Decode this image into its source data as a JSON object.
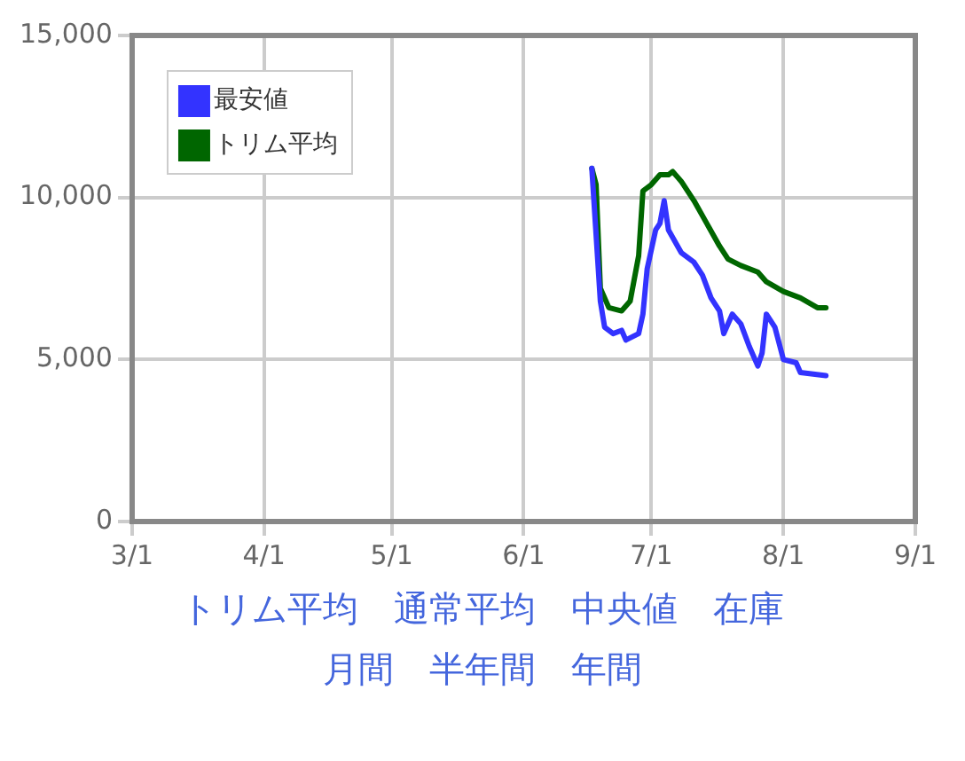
{
  "chart_data": {
    "type": "line",
    "x": [
      "--06-17",
      "--06-19",
      "--06-20",
      "--06-22",
      "--06-24",
      "--06-25",
      "--06-28",
      "--06-29",
      "--06-30",
      "--07-02",
      "--07-03",
      "--07-04",
      "--07-05",
      "--07-08",
      "--07-11",
      "--07-13",
      "--07-15",
      "--07-17",
      "--07-18",
      "--07-20",
      "--07-22",
      "--07-24",
      "--07-26",
      "--07-27",
      "--07-28",
      "--07-30",
      "--08-01",
      "--08-04",
      "--08-05",
      "--08-11"
    ],
    "series": [
      {
        "name": "最安値",
        "color": "#3333ff",
        "values": [
          10900,
          6800,
          6000,
          5800,
          5900,
          5600,
          5800,
          6400,
          7800,
          9000,
          9200,
          9900,
          9000,
          8300,
          8000,
          7600,
          6900,
          6500,
          5800,
          6400,
          6100,
          5400,
          4800,
          5200,
          6400,
          6000,
          5000,
          4900,
          4600,
          4500
        ]
      },
      {
        "name": "トリム平均",
        "color": "#006600",
        "x": [
          "--06-17",
          "--06-18",
          "--06-19",
          "--06-21",
          "--06-24",
          "--06-26",
          "--06-28",
          "--06-29",
          "--07-01",
          "--07-03",
          "--07-05",
          "--07-06",
          "--07-08",
          "--07-11",
          "--07-14",
          "--07-17",
          "--07-19",
          "--07-22",
          "--07-26",
          "--07-28",
          "--08-01",
          "--08-05",
          "--08-09",
          "--08-11"
        ],
        "values": [
          10900,
          10400,
          7200,
          6600,
          6500,
          6800,
          8200,
          10200,
          10400,
          10700,
          10700,
          10800,
          10500,
          9900,
          9200,
          8500,
          8100,
          7900,
          7700,
          7400,
          7100,
          6900,
          6600,
          6600
        ]
      }
    ],
    "xlim": [
      "--03-01",
      "--09-01"
    ],
    "xticks": [
      {
        "value": "--03-01",
        "label": "3/1"
      },
      {
        "value": "--04-01",
        "label": "4/1"
      },
      {
        "value": "--05-01",
        "label": "5/1"
      },
      {
        "value": "--06-01",
        "label": "6/1"
      },
      {
        "value": "--07-01",
        "label": "7/1"
      },
      {
        "value": "--08-01",
        "label": "8/1"
      },
      {
        "value": "--09-01",
        "label": "9/1"
      }
    ],
    "ylim": [
      0,
      15000
    ],
    "yticks": [
      {
        "value": 0,
        "label": "0"
      },
      {
        "value": 5000,
        "label": "5,000"
      },
      {
        "value": 10000,
        "label": "10,000"
      },
      {
        "value": 15000,
        "label": "15,000"
      }
    ],
    "grid": true,
    "legend": "top left",
    "marker": "none",
    "line_style": "solid",
    "annotations": [
      "トリム平均",
      "通常平均",
      "中央値",
      "在庫",
      "月間",
      "半年間",
      "年間"
    ]
  }
}
